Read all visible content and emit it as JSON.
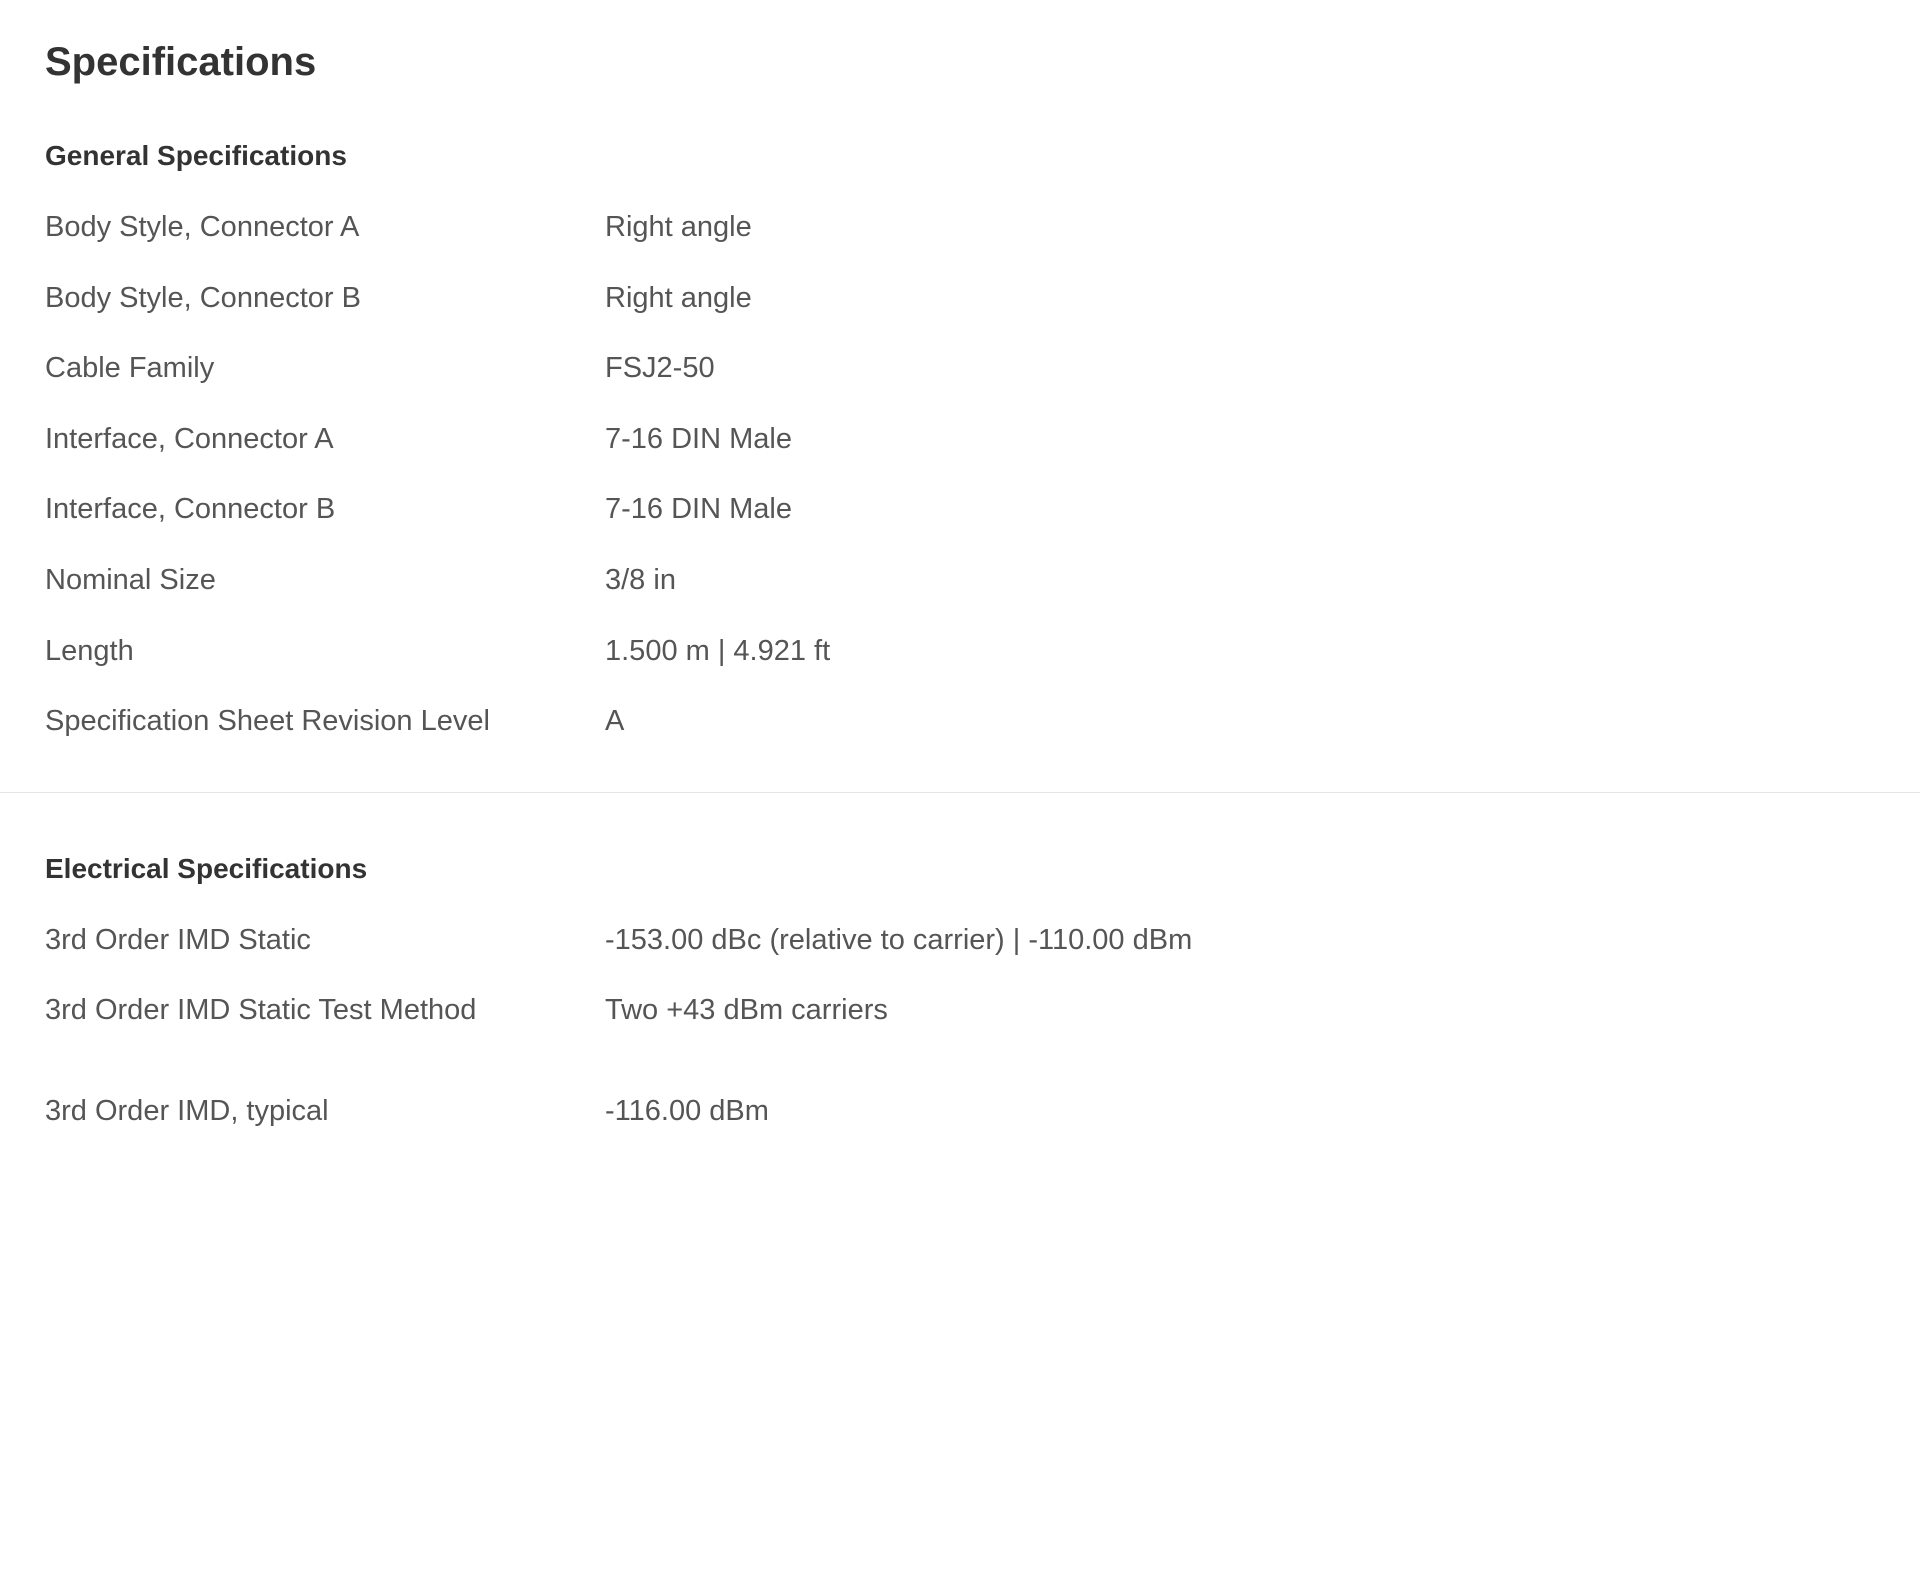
{
  "page": {
    "title": "Specifications"
  },
  "sections": {
    "general": {
      "title": "General Specifications",
      "rows": [
        {
          "label": "Body Style, Connector A",
          "value": "Right angle"
        },
        {
          "label": "Body Style, Connector B",
          "value": "Right angle"
        },
        {
          "label": "Cable Family",
          "value": "FSJ2-50"
        },
        {
          "label": "Interface, Connector A",
          "value": "7-16 DIN Male"
        },
        {
          "label": "Interface, Connector B",
          "value": "7-16 DIN Male"
        },
        {
          "label": "Nominal Size",
          "value": "3/8 in"
        },
        {
          "label": "Length",
          "value": "1.500 m   |   4.921 ft"
        },
        {
          "label": "Specification Sheet Revision Level",
          "value": "A"
        }
      ]
    },
    "electrical": {
      "title": "Electrical Specifications",
      "rows": [
        {
          "label": "3rd Order IMD Static",
          "value": "-153.00 dBc (relative to carrier)   |   -110.00 dBm"
        },
        {
          "label": "3rd Order IMD Static Test Method",
          "value": "Two +43 dBm carriers"
        },
        {
          "label": "3rd Order IMD, typical",
          "value": "-116.00 dBm"
        }
      ]
    }
  },
  "style": {
    "background_color": "#ffffff",
    "title_color": "#333333",
    "title_fontsize": 40,
    "section_title_fontsize": 28,
    "section_title_color": "#333333",
    "text_color": "#555555",
    "text_fontsize": 29,
    "label_column_width": 560,
    "row_spacing": 30,
    "divider_color": "#e5e5e5",
    "font_family": "Verdana, Geneva, sans-serif"
  }
}
